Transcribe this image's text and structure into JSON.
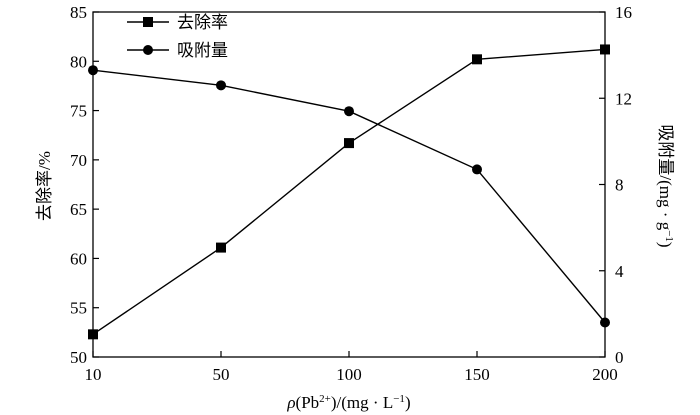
{
  "chart_data": {
    "type": "line",
    "x": [
      10,
      50,
      100,
      150,
      200
    ],
    "x_tick_labels": [
      "10",
      "50",
      "100",
      "150",
      "200"
    ],
    "xlabel": {
      "rho": "ρ",
      "open": "(Pb",
      "pb_sup": "2+",
      "mid": ")/(mg · L",
      "l_sup": "−1",
      "close": ")"
    },
    "y_left": {
      "label": "去除率/%",
      "range": [
        50,
        85
      ],
      "ticks": [
        50,
        55,
        60,
        65,
        70,
        75,
        80,
        85
      ],
      "tick_labels": [
        "50",
        "55",
        "60",
        "65",
        "70",
        "75",
        "80",
        "85"
      ]
    },
    "y_right": {
      "label_main": "吸附量/(mg · g",
      "label_sup": "−1",
      "label_end": ")",
      "range": [
        0,
        16
      ],
      "ticks": [
        0,
        4,
        8,
        12,
        16
      ],
      "tick_labels": [
        "0",
        "4",
        "8",
        "12",
        "16"
      ]
    },
    "series": [
      {
        "name": "去除率",
        "axis": "left",
        "marker": "square",
        "values": [
          52.3,
          61.1,
          71.7,
          80.2,
          81.2
        ]
      },
      {
        "name": "吸附量",
        "axis": "right",
        "marker": "circle",
        "values": [
          13.3,
          12.6,
          11.4,
          8.7,
          1.6
        ]
      }
    ],
    "legend_position": "top-left",
    "grid": false,
    "colors": {
      "line": "#000000",
      "axis": "#000000"
    }
  }
}
